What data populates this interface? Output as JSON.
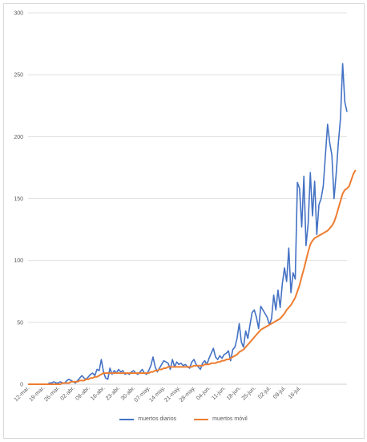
{
  "chart_data": {
    "type": "line",
    "title": "",
    "xlabel": "",
    "ylabel": "",
    "ylim": [
      0,
      300
    ],
    "y_ticks": [
      0,
      50,
      100,
      150,
      200,
      250,
      300
    ],
    "grid": true,
    "legend_position": "bottom",
    "x_tick_labels": [
      "12-mar.",
      "19-mar.",
      "26-mar.",
      "02-abr.",
      "09-abr.",
      "16-abr.",
      "23-abr.",
      "30-abr.",
      "07-may.",
      "14-may.",
      "21-may.",
      "28-may.",
      "04-jun.",
      "11-jun.",
      "18-jun.",
      "25-jun.",
      "02-jul.",
      "09-jul.",
      "16-jul."
    ],
    "series": [
      {
        "name": "muertos diarios",
        "color": "#4472C4",
        "values": [
          0,
          0,
          0,
          0,
          0,
          0,
          0,
          0,
          0,
          0,
          1,
          1,
          2,
          1,
          1,
          2,
          1,
          1,
          3,
          4,
          3,
          2,
          1,
          3,
          5,
          7,
          5,
          4,
          6,
          8,
          9,
          7,
          12,
          11,
          20,
          10,
          5,
          4,
          13,
          8,
          11,
          9,
          12,
          10,
          11,
          8,
          9,
          8,
          10,
          11,
          9,
          8,
          10,
          12,
          9,
          8,
          11,
          15,
          22,
          14,
          10,
          13,
          16,
          19,
          18,
          17,
          12,
          20,
          14,
          18,
          16,
          17,
          15,
          16,
          14,
          13,
          18,
          20,
          16,
          14,
          12,
          17,
          19,
          16,
          21,
          25,
          29,
          22,
          20,
          23,
          21,
          24,
          25,
          27,
          19,
          28,
          30,
          37,
          49,
          34,
          30,
          43,
          37,
          48,
          58,
          60,
          54,
          45,
          63,
          60,
          57,
          54,
          48,
          53,
          72,
          60,
          76,
          62,
          81,
          94,
          83,
          110,
          74,
          90,
          85,
          163,
          158,
          127,
          168,
          112,
          130,
          171,
          136,
          164,
          121,
          145,
          150,
          160,
          185,
          210,
          195,
          185,
          150,
          170,
          195,
          215,
          259,
          228,
          220
        ]
      },
      {
        "name": "muertos móvil",
        "color": "#ED7D31",
        "values": [
          0,
          0,
          0,
          0,
          0,
          0,
          0,
          0,
          0,
          0,
          0,
          0,
          0,
          0,
          0,
          0,
          1,
          1,
          1,
          1,
          2,
          2,
          2,
          2,
          3,
          3,
          3,
          4,
          4,
          5,
          5,
          6,
          6,
          7,
          8,
          9,
          9,
          9,
          9,
          9,
          9,
          9,
          9,
          9,
          9,
          9,
          9,
          9,
          9,
          9,
          9,
          9,
          9,
          9,
          9,
          9,
          9,
          10,
          10,
          11,
          11,
          12,
          12,
          13,
          13,
          14,
          14,
          14,
          14,
          14,
          14,
          14,
          14,
          14,
          14,
          14,
          14,
          15,
          15,
          15,
          15,
          15,
          16,
          16,
          16,
          17,
          17,
          17,
          18,
          18,
          19,
          19,
          20,
          20,
          21,
          22,
          23,
          24,
          26,
          27,
          28,
          30,
          32,
          34,
          36,
          38,
          40,
          42,
          44,
          45,
          46,
          47,
          48,
          49,
          50,
          51,
          52,
          53,
          55,
          57,
          60,
          62,
          64,
          67,
          70,
          75,
          80,
          87,
          93,
          100,
          107,
          113,
          116,
          118,
          119,
          120,
          121,
          122,
          123,
          124,
          126,
          128,
          131,
          136,
          142,
          148,
          154,
          157,
          158,
          160,
          165,
          170,
          173
        ]
      }
    ]
  }
}
